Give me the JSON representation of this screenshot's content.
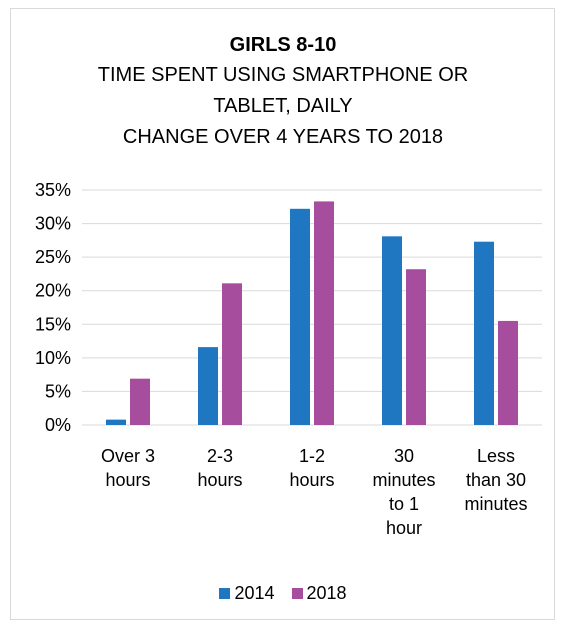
{
  "chart_data": {
    "type": "bar",
    "title": "GIRLS 8-10",
    "subtitle_lines": [
      "TIME SPENT USING SMARTPHONE OR",
      "TABLET, DAILY",
      "CHANGE OVER 4 YEARS TO 2018"
    ],
    "categories": [
      [
        "Over 3",
        "hours"
      ],
      [
        "2-3",
        "hours"
      ],
      [
        "1-2",
        "hours"
      ],
      [
        "30",
        "minutes",
        "to 1",
        "hour"
      ],
      [
        "Less",
        "than 30",
        "minutes"
      ]
    ],
    "series": [
      {
        "name": "2014",
        "color": "#1f77c1",
        "values": [
          0.8,
          11.6,
          32.2,
          28.1,
          27.3
        ]
      },
      {
        "name": "2018",
        "color": "#a64d9e",
        "values": [
          6.9,
          21.1,
          33.3,
          23.2,
          15.5
        ]
      }
    ],
    "ylim": [
      0,
      35
    ],
    "yticks": [
      0,
      5,
      10,
      15,
      20,
      25,
      30,
      35
    ],
    "ytick_labels": [
      "0%",
      "5%",
      "10%",
      "15%",
      "20%",
      "25%",
      "30%",
      "35%"
    ],
    "grid": true,
    "legend_position": "bottom"
  }
}
